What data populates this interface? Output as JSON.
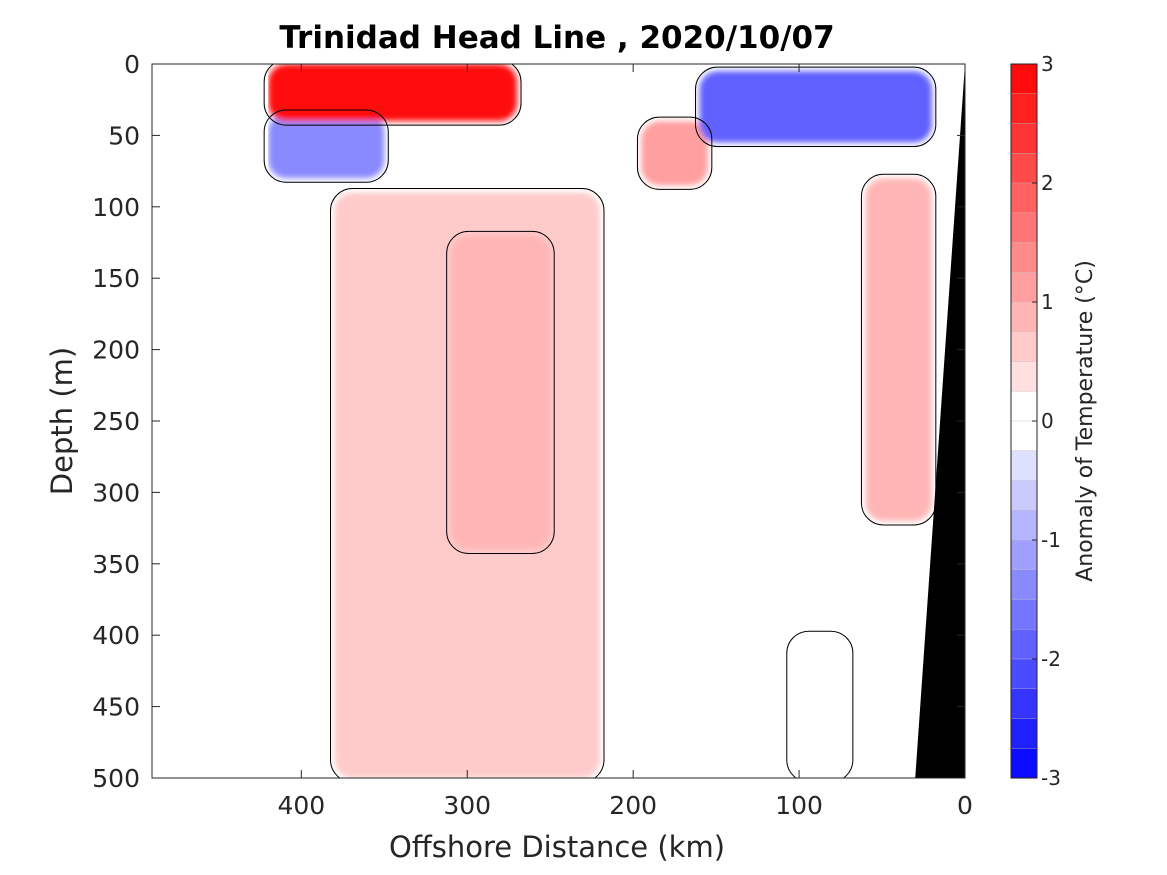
{
  "chart_data": {
    "type": "heatmap",
    "title": "Trinidad Head Line , 2020/10/07",
    "xlabel": "Offshore Distance (km)",
    "ylabel": "Depth (m)",
    "xlim": [
      490,
      0
    ],
    "ylim": [
      0,
      500
    ],
    "x_reversed": true,
    "y_reversed": true,
    "x_ticks": [
      400,
      300,
      200,
      100,
      0
    ],
    "y_ticks": [
      0,
      50,
      100,
      150,
      200,
      250,
      300,
      350,
      400,
      450,
      500
    ],
    "colorbar": {
      "label": "Anomaly of Temperature (°C)",
      "range": [
        -3,
        3
      ],
      "ticks": [
        3,
        2,
        1,
        0,
        -1,
        -2,
        -3
      ],
      "levels": 24,
      "colormap": "blue-white-red"
    },
    "data_extent_km": [
      420,
      0
    ],
    "contour_level": 0,
    "bathymetry_color": "#000000",
    "regions": [
      {
        "name": "warm-surface-core",
        "x": [
          420,
          270
        ],
        "depth": [
          0,
          40
        ],
        "anomaly": 3.0
      },
      {
        "name": "cold-lens-west",
        "x": [
          420,
          350
        ],
        "depth": [
          35,
          80
        ],
        "anomaly": -1.4
      },
      {
        "name": "cold-lens-east",
        "x": [
          160,
          20
        ],
        "depth": [
          5,
          55
        ],
        "anomaly": -2.0
      },
      {
        "name": "warm-pocket",
        "x": [
          195,
          155
        ],
        "depth": [
          40,
          85
        ],
        "anomaly": 1.2
      },
      {
        "name": "warm-subsurface-plume",
        "x": [
          380,
          220
        ],
        "depth": [
          90,
          500
        ],
        "anomaly": 0.7
      },
      {
        "name": "warm-core-deep",
        "x": [
          310,
          250
        ],
        "depth": [
          120,
          340
        ],
        "anomaly": 0.9
      },
      {
        "name": "warm-nearshore-column",
        "x": [
          60,
          20
        ],
        "depth": [
          80,
          320
        ],
        "anomaly": 0.9
      },
      {
        "name": "cold-deep-patch",
        "x": [
          105,
          70
        ],
        "depth": [
          400,
          500
        ],
        "anomaly": -0.25
      }
    ]
  }
}
